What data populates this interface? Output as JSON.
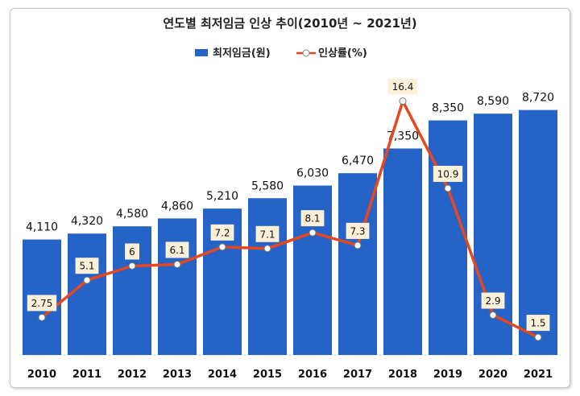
{
  "chart_data": {
    "type": "bar",
    "title": "연도별 최저임금 인상 추이(2010년 ~ 2021년)",
    "categories": [
      "2010",
      "2011",
      "2012",
      "2013",
      "2014",
      "2015",
      "2016",
      "2017",
      "2018",
      "2019",
      "2020",
      "2021"
    ],
    "series": [
      {
        "name": "최저임금(원)",
        "type": "bar",
        "color": "#2563c7",
        "values": [
          4110,
          4320,
          4580,
          4860,
          5210,
          5580,
          6030,
          6470,
          7350,
          8350,
          8590,
          8720
        ],
        "labels": [
          "4,110",
          "4,320",
          "4,580",
          "4,860",
          "5,210",
          "5,580",
          "6,030",
          "6,470",
          "7,350",
          "8,350",
          "8,590",
          "8,720"
        ]
      },
      {
        "name": "인상률(%)",
        "type": "line",
        "color": "#e8471e",
        "values": [
          2.75,
          5.1,
          6,
          6.1,
          7.2,
          7.1,
          8.1,
          7.3,
          16.4,
          10.9,
          2.9,
          1.5
        ],
        "labels": [
          "2.75",
          "5.1",
          "6",
          "6.1",
          "7.2",
          "7.1",
          "8.1",
          "7.3",
          "16.4",
          "10.9",
          "2.9",
          "1.5"
        ]
      }
    ],
    "legend_position": "top",
    "grid": false
  }
}
